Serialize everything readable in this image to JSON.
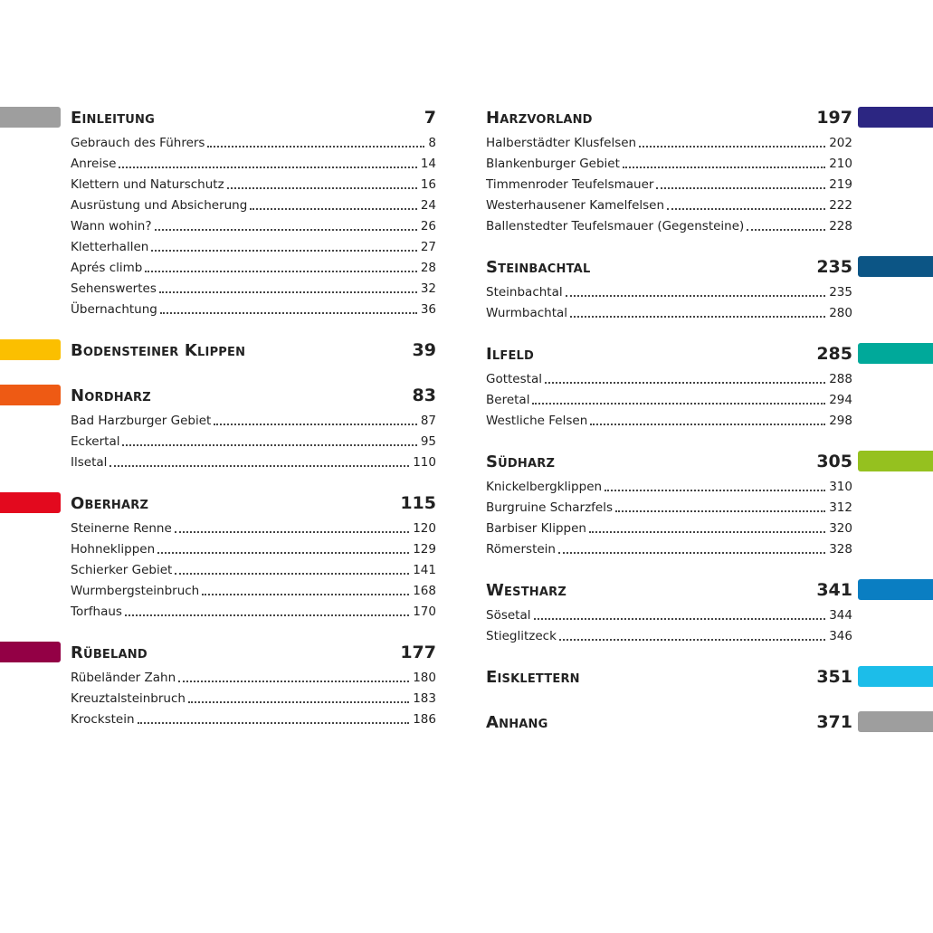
{
  "left_column": [
    {
      "title": "Einleitung",
      "page": "7",
      "color": "#9e9e9e",
      "entries": [
        {
          "name": "Gebrauch des Führers",
          "page": "8"
        },
        {
          "name": "Anreise",
          "page": "14"
        },
        {
          "name": "Klettern und Naturschutz",
          "page": "16"
        },
        {
          "name": "Ausrüstung und Absicherung",
          "page": "24"
        },
        {
          "name": "Wann wohin?",
          "page": "26"
        },
        {
          "name": "Kletterhallen",
          "page": "27"
        },
        {
          "name": "Aprés climb",
          "page": "28"
        },
        {
          "name": "Sehenswertes",
          "page": "32"
        },
        {
          "name": "Übernachtung",
          "page": "36"
        }
      ]
    },
    {
      "title": "Bodensteiner Klippen",
      "page": "39",
      "color": "#fbbf00",
      "entries": []
    },
    {
      "title": "Nordharz",
      "page": "83",
      "color": "#ee5a14",
      "entries": [
        {
          "name": "Bad Harzburger Gebiet",
          "page": "87"
        },
        {
          "name": "Eckertal",
          "page": "95"
        },
        {
          "name": "Ilsetal",
          "page": "110"
        }
      ]
    },
    {
      "title": "Oberharz",
      "page": "115",
      "color": "#e3091e",
      "entries": [
        {
          "name": "Steinerne Renne",
          "page": "120"
        },
        {
          "name": "Hohneklippen",
          "page": "129"
        },
        {
          "name": "Schierker Gebiet",
          "page": "141"
        },
        {
          "name": "Wurmbergsteinbruch",
          "page": "168"
        },
        {
          "name": "Torfhaus",
          "page": "170"
        }
      ]
    },
    {
      "title": "Rübeland",
      "page": "177",
      "color": "#930045",
      "entries": [
        {
          "name": "Rübeländer Zahn",
          "page": "180"
        },
        {
          "name": "Kreuztalsteinbruch",
          "page": "183"
        },
        {
          "name": "Krockstein",
          "page": "186"
        }
      ]
    }
  ],
  "right_column": [
    {
      "title": "Harzvorland",
      "page": "197",
      "color": "#2c2682",
      "entries": [
        {
          "name": "Halberstädter Klusfelsen",
          "page": "202"
        },
        {
          "name": "Blankenburger Gebiet",
          "page": "210"
        },
        {
          "name": "Timmenroder Teufelsmauer",
          "page": "219"
        },
        {
          "name": "Westerhausener Kamelfelsen",
          "page": "222"
        },
        {
          "name": "Ballenstedter Teufelsmauer (Gegensteine)",
          "page": "228"
        }
      ]
    },
    {
      "title": "Steinbachtal",
      "page": "235",
      "color": "#0c5585",
      "entries": [
        {
          "name": "Steinbachtal",
          "page": "235"
        },
        {
          "name": "Wurmbachtal",
          "page": "280"
        }
      ]
    },
    {
      "title": "Ilfeld",
      "page": "285",
      "color": "#00a99a",
      "entries": [
        {
          "name": "Gottestal",
          "page": "288"
        },
        {
          "name": "Beretal",
          "page": "294"
        },
        {
          "name": "Westliche Felsen",
          "page": "298"
        }
      ]
    },
    {
      "title": "Südharz",
      "page": "305",
      "color": "#95c11f",
      "entries": [
        {
          "name": "Knickelbergklippen",
          "page": "310"
        },
        {
          "name": "Burgruine Scharzfels",
          "page": "312"
        },
        {
          "name": "Barbiser Klippen",
          "page": "320"
        },
        {
          "name": "Römerstein",
          "page": "328"
        }
      ]
    },
    {
      "title": "Westharz",
      "page": "341",
      "color": "#0a7ec2",
      "entries": [
        {
          "name": "Sösetal",
          "page": "344"
        },
        {
          "name": "Stieglitzeck",
          "page": "346"
        }
      ]
    },
    {
      "title": "Eisklettern",
      "page": "351",
      "color": "#1cbde9",
      "entries": []
    },
    {
      "title": "Anhang",
      "page": "371",
      "color": "#9e9e9e",
      "entries": []
    }
  ]
}
